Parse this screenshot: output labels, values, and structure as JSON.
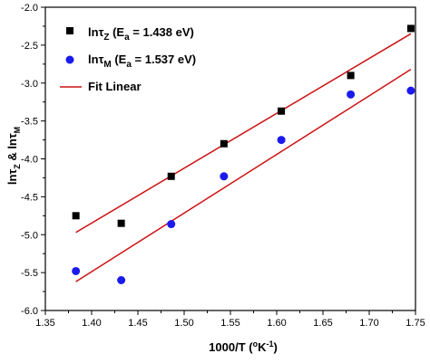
{
  "chart_data": {
    "type": "scatter",
    "x_axis": {
      "label_main": "1000/T (",
      "label_sup_o": "o",
      "label_k": "K",
      "label_sup_exp": "-1",
      "label_close": ")",
      "range": [
        1.35,
        1.75
      ],
      "ticks": [
        "1.35",
        "1.40",
        "1.45",
        "1.50",
        "1.55",
        "1.60",
        "1.65",
        "1.70",
        "1.75"
      ]
    },
    "y_axis": {
      "label_ln1": "ln",
      "label_tau1": "τ",
      "label_sub1": "Z",
      "label_amp": " & ln",
      "label_tau2": "τ",
      "label_sub2": "M",
      "range": [
        -6.0,
        -2.0
      ],
      "ticks": [
        "-2.0",
        "-2.5",
        "-3.0",
        "-3.5",
        "-4.0",
        "-4.5",
        "-5.0",
        "-5.5",
        "-6.0"
      ]
    },
    "grid": false,
    "legend_position": "top-left",
    "series": [
      {
        "id": "tauZ",
        "marker": "square",
        "color": "#000000",
        "legend": {
          "ln": "ln",
          "tau": "τ",
          "sub": "Z",
          "open": " (E",
          "esub": "a",
          "value": " = 1.438 eV)"
        },
        "x": [
          1.383,
          1.432,
          1.486,
          1.543,
          1.605,
          1.68,
          1.745
        ],
        "y": [
          -4.75,
          -4.85,
          -4.23,
          -3.8,
          -3.37,
          -2.9,
          -2.28
        ]
      },
      {
        "id": "tauM",
        "marker": "circle",
        "color": "#1a1aee",
        "legend": {
          "ln": "ln",
          "tau": "τ",
          "sub": "M",
          "open": " (E",
          "esub": "a",
          "value": " = 1.537 eV)"
        },
        "x": [
          1.383,
          1.432,
          1.486,
          1.543,
          1.605,
          1.68,
          1.745
        ],
        "y": [
          -5.48,
          -5.6,
          -4.86,
          -4.23,
          -3.75,
          -3.15,
          -3.1
        ]
      }
    ],
    "fits": [
      {
        "series": "tauZ",
        "color": "#cc1111",
        "x": [
          1.383,
          1.745
        ],
        "y": [
          -4.97,
          -2.35
        ]
      },
      {
        "series": "tauM",
        "color": "#cc1111",
        "x": [
          1.383,
          1.745
        ],
        "y": [
          -5.62,
          -2.82
        ]
      }
    ],
    "fit_legend": {
      "label": "Fit Linear",
      "color": "#cc1111"
    }
  }
}
